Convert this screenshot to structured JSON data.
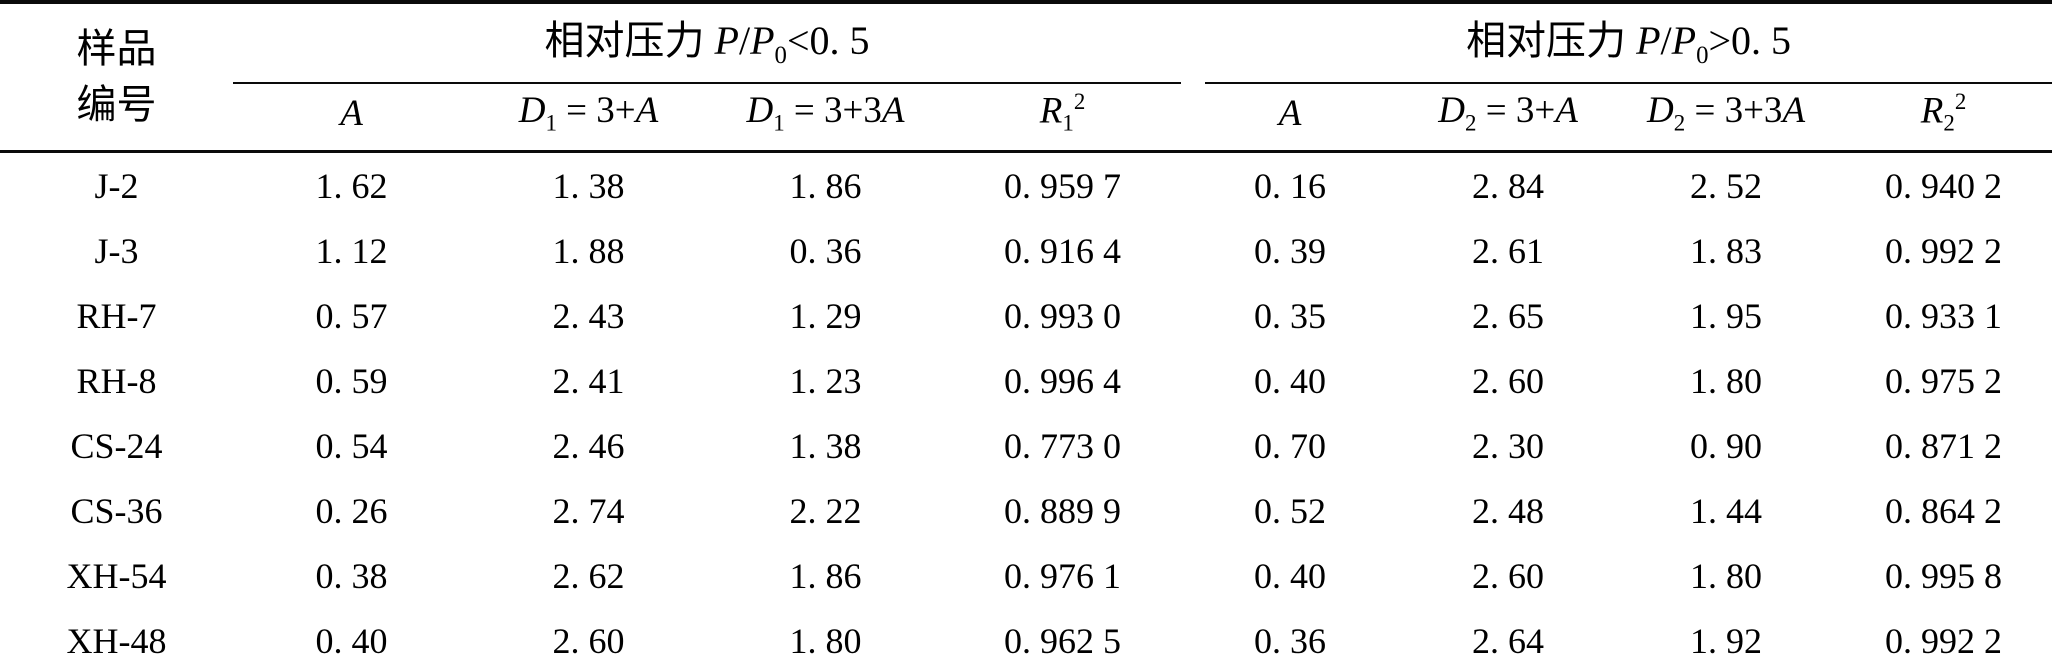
{
  "table": {
    "sample_header": {
      "line1": "样品",
      "line2": "编号"
    },
    "groups": [
      {
        "label": "相对压力 ",
        "p1": "P",
        "slash": "/",
        "p2": "P",
        "p2_sub": "0",
        "condition": "<0. 5"
      },
      {
        "label": "相对压力 ",
        "p1": "P",
        "slash": "/",
        "p2": "P",
        "p2_sub": "0",
        "condition": ">0. 5"
      }
    ],
    "subheaders": [
      {
        "base": "A"
      },
      {
        "base": "D",
        "sub": "1",
        "rest": " = 3+",
        "tail": "A"
      },
      {
        "base": "D",
        "sub": "1",
        "rest": " = 3+3",
        "tail": "A"
      },
      {
        "base": "R",
        "sub": "1",
        "sup": "2"
      },
      {
        "base": "A"
      },
      {
        "base": "D",
        "sub": "2",
        "rest": " = 3+",
        "tail": "A"
      },
      {
        "base": "D",
        "sub": "2",
        "rest": " = 3+3",
        "tail": "A"
      },
      {
        "base": "R",
        "sub": "2",
        "sup": "2"
      }
    ],
    "rows": [
      {
        "sample": "J-2",
        "values": [
          "1. 62",
          "1. 38",
          "1. 86",
          "0. 959 7",
          "0. 16",
          "2. 84",
          "2. 52",
          "0. 940 2"
        ]
      },
      {
        "sample": "J-3",
        "values": [
          "1. 12",
          "1. 88",
          "0. 36",
          "0. 916 4",
          "0. 39",
          "2. 61",
          "1. 83",
          "0. 992 2"
        ]
      },
      {
        "sample": "RH-7",
        "values": [
          "0. 57",
          "2. 43",
          "1. 29",
          "0. 993 0",
          "0. 35",
          "2. 65",
          "1. 95",
          "0. 933 1"
        ]
      },
      {
        "sample": "RH-8",
        "values": [
          "0. 59",
          "2. 41",
          "1. 23",
          "0. 996 4",
          "0. 40",
          "2. 60",
          "1. 80",
          "0. 975 2"
        ]
      },
      {
        "sample": "CS-24",
        "values": [
          "0. 54",
          "2. 46",
          "1. 38",
          "0. 773 0",
          "0. 70",
          "2. 30",
          "0. 90",
          "0. 871 2"
        ]
      },
      {
        "sample": "CS-36",
        "values": [
          "0. 26",
          "2. 74",
          "2. 22",
          "0. 889 9",
          "0. 52",
          "2. 48",
          "1. 44",
          "0. 864 2"
        ]
      },
      {
        "sample": "XH-54",
        "values": [
          "0. 38",
          "2. 62",
          "1. 86",
          "0. 976 1",
          "0. 40",
          "2. 60",
          "1. 80",
          "0. 995 8"
        ]
      },
      {
        "sample": "XH-48",
        "values": [
          "0. 40",
          "2. 60",
          "1. 80",
          "0. 962 5",
          "0. 36",
          "2. 64",
          "1. 92",
          "0. 992 2"
        ]
      }
    ]
  }
}
